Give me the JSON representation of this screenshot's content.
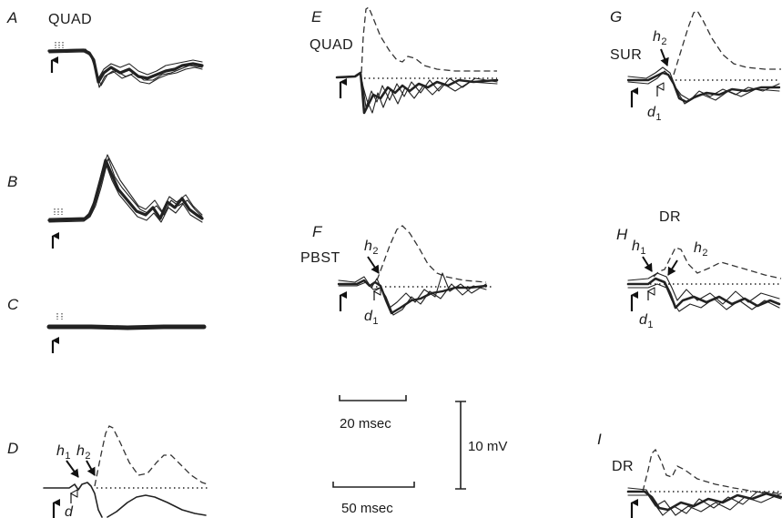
{
  "panels": {
    "A": {
      "letter": "A",
      "label": "QUAD"
    },
    "B": {
      "letter": "B"
    },
    "C": {
      "letter": "C"
    },
    "D": {
      "letter": "D",
      "h1": "h",
      "h1_sub": "1",
      "h2": "h",
      "h2_sub": "2",
      "d1": "d"
    },
    "E": {
      "letter": "E",
      "label": "QUAD"
    },
    "F": {
      "letter": "F",
      "label": "PBST",
      "h2": "h",
      "h2_sub": "2",
      "d1": "d",
      "d1_sub": "1"
    },
    "G": {
      "letter": "G",
      "label": "SUR",
      "h2": "h",
      "h2_sub": "2",
      "d1": "d",
      "d1_sub": "1"
    },
    "H": {
      "letter": "H",
      "label": "DR",
      "h1": "h",
      "h1_sub": "1",
      "h2": "h",
      "h2_sub": "2",
      "d1": "d",
      "d1_sub": "1"
    },
    "I": {
      "letter": "I",
      "label": "DR"
    }
  },
  "scale_bars": {
    "time_fast": "20 msec",
    "time_slow": "50 msec",
    "voltage": "10 mV"
  }
}
